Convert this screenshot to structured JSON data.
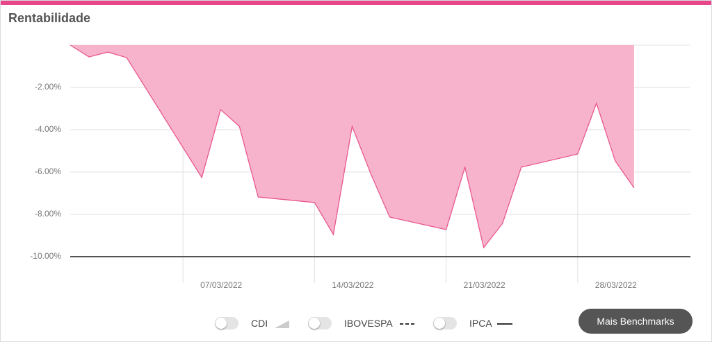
{
  "title": "Rentabilidade",
  "chart_data": {
    "type": "area",
    "x": [
      "01/03/2022",
      "02/03/2022",
      "03/03/2022",
      "04/03/2022",
      "08/03/2022",
      "09/03/2022",
      "10/03/2022",
      "11/03/2022",
      "14/03/2022",
      "15/03/2022",
      "16/03/2022",
      "17/03/2022",
      "18/03/2022",
      "21/03/2022",
      "22/03/2022",
      "23/03/2022",
      "24/03/2022",
      "25/03/2022",
      "28/03/2022",
      "29/03/2022",
      "30/03/2022",
      "31/03/2022"
    ],
    "values": [
      0.0,
      -0.56,
      -0.33,
      -0.59,
      -6.26,
      -3.05,
      -3.84,
      -7.18,
      -7.44,
      -8.95,
      -3.84,
      -6.1,
      -8.13,
      -8.72,
      -5.77,
      -9.57,
      -8.43,
      -5.77,
      -5.15,
      -2.75,
      -5.48,
      -6.75
    ],
    "color": "#e8578e",
    "fill": "#f7b3cc",
    "xlim": [
      "01/03/2022",
      "03/04/2022"
    ],
    "xticks": [
      "07/03/2022",
      "14/03/2022",
      "21/03/2022",
      "28/03/2022"
    ],
    "ylim": [
      -10,
      0
    ],
    "yticks": [
      {
        "value": -2,
        "label": "-2.00%"
      },
      {
        "value": -4,
        "label": "-4.00%"
      },
      {
        "value": -6,
        "label": "-6.00%"
      },
      {
        "value": -8,
        "label": "-8.00%"
      },
      {
        "value": -10,
        "label": "-10.00%"
      }
    ],
    "grid": true
  },
  "benchmarks": [
    "CDI",
    "IBOVESPA",
    "IPCA"
  ],
  "button": "Mais Benchmarks"
}
